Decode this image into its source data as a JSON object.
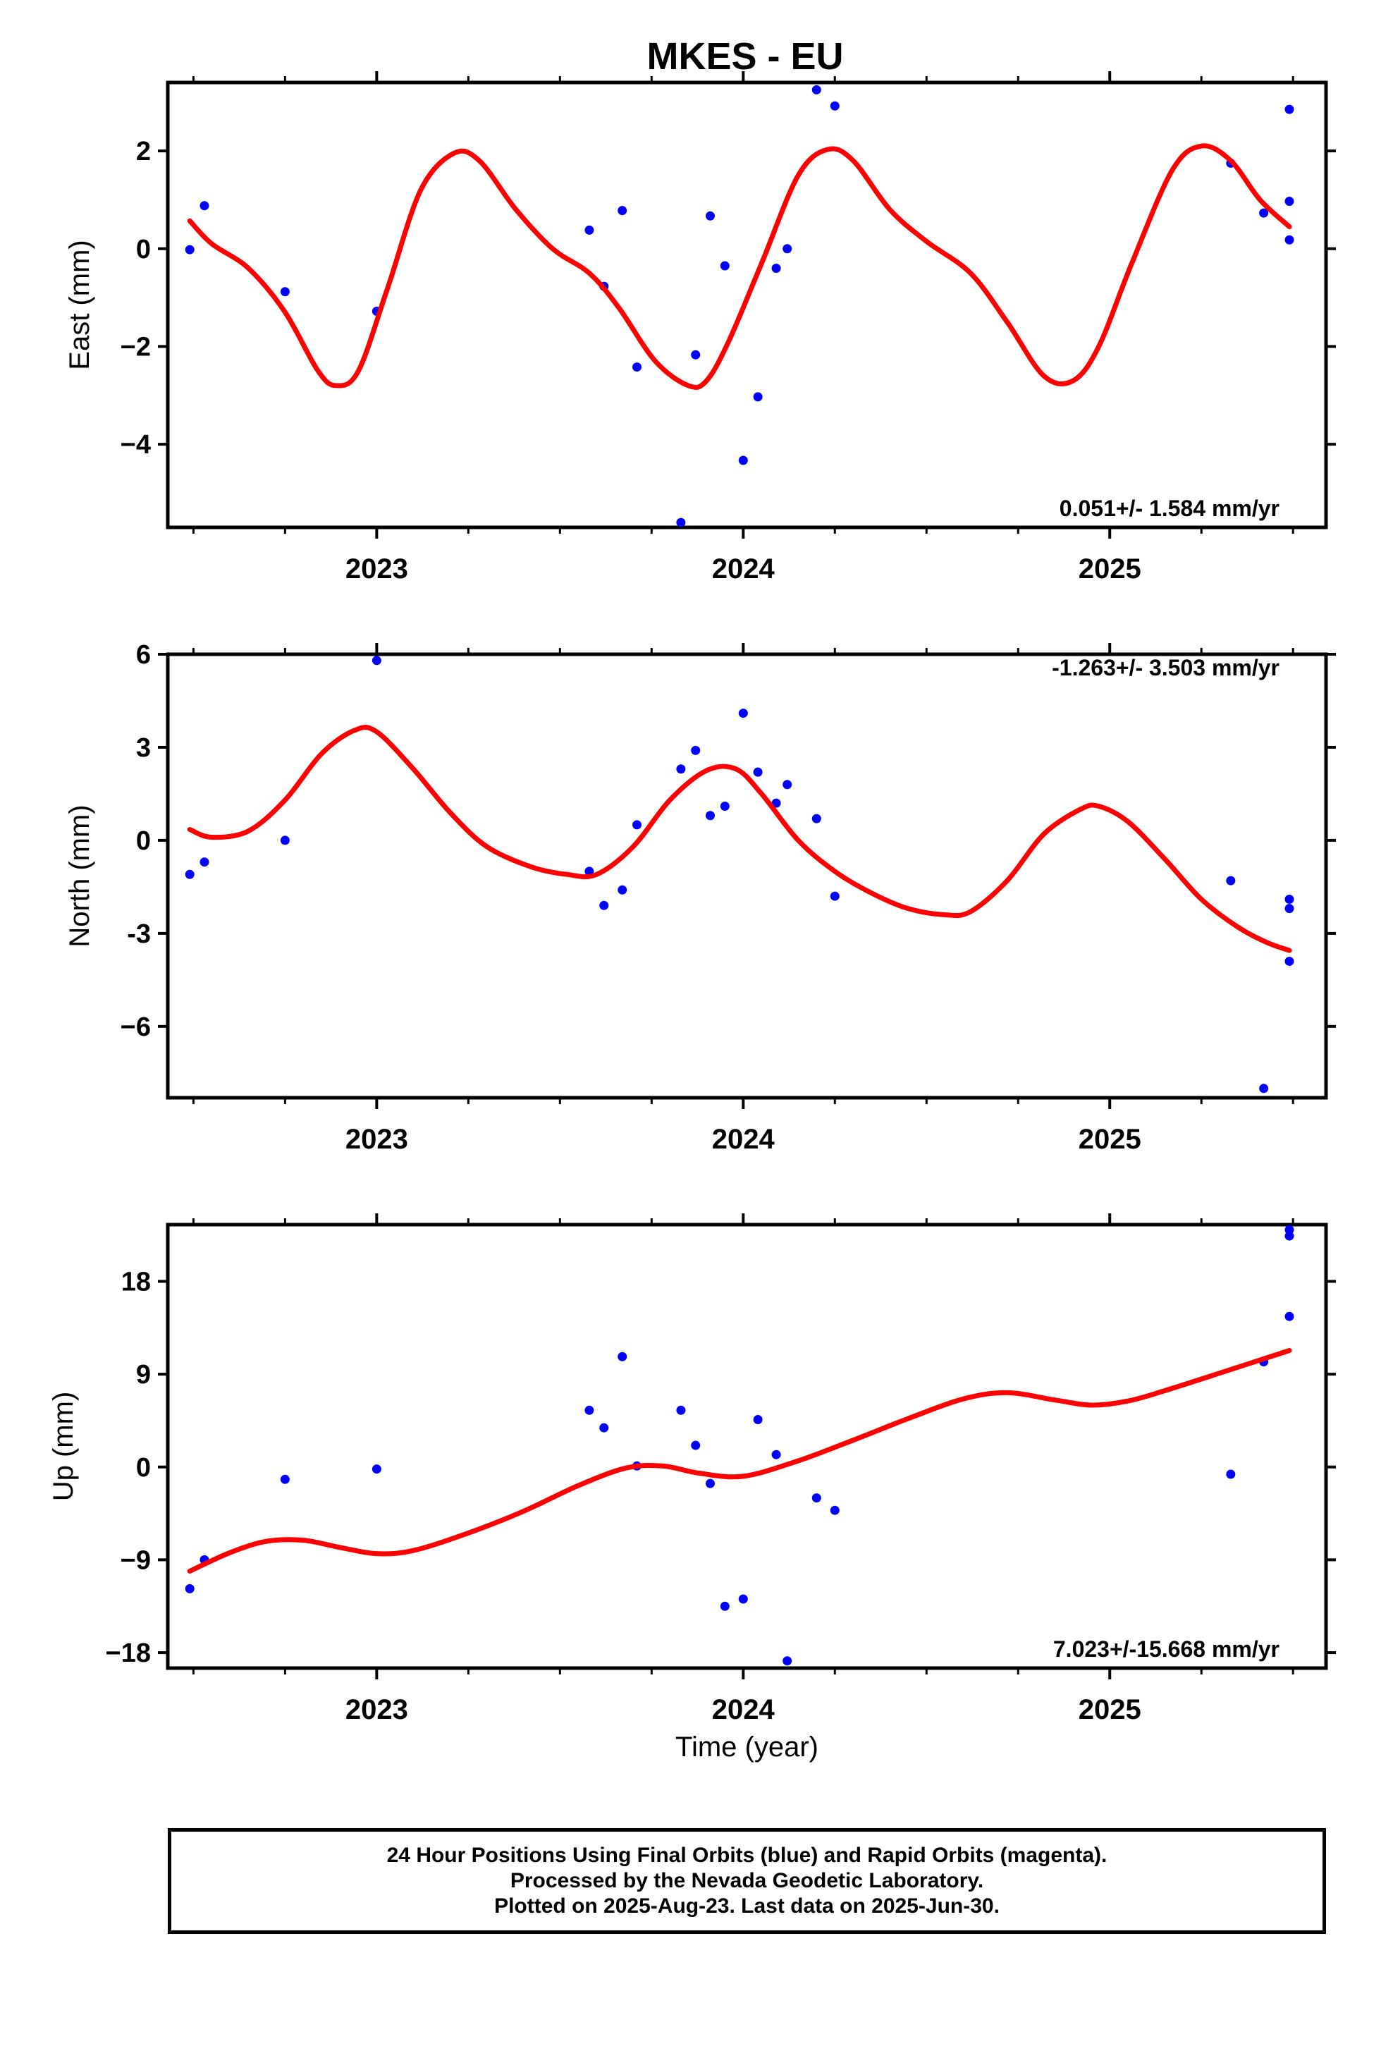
{
  "title": "MKES - EU",
  "colors": {
    "data_points": "#0000ff",
    "fit_curve": "#ff0000",
    "frame": "#000000"
  },
  "chart_data": [
    {
      "type": "scatter",
      "panel": "east",
      "ylabel": "East (mm)",
      "xlim": [
        2022.43,
        2025.59
      ],
      "ylim": [
        -5.7,
        3.4
      ],
      "yticks": [
        2,
        0,
        -2,
        -4
      ],
      "ytick_labels": [
        "2",
        "0",
        "−2",
        "−4"
      ],
      "xticks": [
        2023,
        2024,
        2025
      ],
      "xtick_labels": [
        "2023",
        "2024",
        "2025"
      ],
      "rate_label": "0.051+/- 1.584 mm/yr",
      "points": [
        [
          2022.49,
          -0.02
        ],
        [
          2022.53,
          0.88
        ],
        [
          2022.75,
          -0.88
        ],
        [
          2023.0,
          -1.28
        ],
        [
          2023.58,
          0.38
        ],
        [
          2023.62,
          -0.77
        ],
        [
          2023.67,
          0.78
        ],
        [
          2023.71,
          -2.42
        ],
        [
          2023.83,
          -5.6
        ],
        [
          2023.87,
          -2.17
        ],
        [
          2023.91,
          0.67
        ],
        [
          2023.95,
          -0.35
        ],
        [
          2024.0,
          -4.33
        ],
        [
          2024.04,
          -3.03
        ],
        [
          2024.09,
          -0.4
        ],
        [
          2024.12,
          0.0
        ],
        [
          2024.2,
          3.25
        ],
        [
          2024.25,
          2.92
        ],
        [
          2025.33,
          1.75
        ],
        [
          2025.42,
          0.73
        ],
        [
          2025.49,
          2.85
        ],
        [
          2025.49,
          0.97
        ],
        [
          2025.49,
          0.18
        ]
      ],
      "fit": [
        [
          2022.49,
          0.57
        ],
        [
          2022.55,
          0.1
        ],
        [
          2022.65,
          -0.4
        ],
        [
          2022.75,
          -1.3
        ],
        [
          2022.84,
          -2.5
        ],
        [
          2022.89,
          -2.8
        ],
        [
          2022.95,
          -2.5
        ],
        [
          2023.03,
          -0.8
        ],
        [
          2023.12,
          1.2
        ],
        [
          2023.21,
          1.95
        ],
        [
          2023.28,
          1.8
        ],
        [
          2023.38,
          0.8
        ],
        [
          2023.48,
          0.0
        ],
        [
          2023.58,
          -0.5
        ],
        [
          2023.66,
          -1.2
        ],
        [
          2023.76,
          -2.3
        ],
        [
          2023.85,
          -2.8
        ],
        [
          2023.9,
          -2.7
        ],
        [
          2023.96,
          -1.9
        ],
        [
          2024.05,
          -0.3
        ],
        [
          2024.15,
          1.5
        ],
        [
          2024.23,
          2.03
        ],
        [
          2024.3,
          1.8
        ],
        [
          2024.4,
          0.8
        ],
        [
          2024.5,
          0.15
        ],
        [
          2024.62,
          -0.5
        ],
        [
          2024.72,
          -1.5
        ],
        [
          2024.82,
          -2.6
        ],
        [
          2024.9,
          -2.7
        ],
        [
          2024.97,
          -2.0
        ],
        [
          2025.06,
          -0.3
        ],
        [
          2025.17,
          1.6
        ],
        [
          2025.25,
          2.1
        ],
        [
          2025.33,
          1.8
        ],
        [
          2025.41,
          1.0
        ],
        [
          2025.49,
          0.45
        ]
      ]
    },
    {
      "type": "scatter",
      "panel": "north",
      "ylabel": "North (mm)",
      "xlim": [
        2022.43,
        2025.59
      ],
      "ylim": [
        -8.3,
        6.0
      ],
      "yticks": [
        6,
        3,
        0,
        -3,
        -6
      ],
      "ytick_labels": [
        "6",
        "3",
        "0",
        "-3",
        "−6"
      ],
      "xticks": [
        2023,
        2024,
        2025
      ],
      "xtick_labels": [
        "2023",
        "2024",
        "2025"
      ],
      "rate_label": "-1.263+/- 3.503 mm/yr",
      "points": [
        [
          2022.49,
          -1.1
        ],
        [
          2022.53,
          -0.7
        ],
        [
          2022.75,
          0.0
        ],
        [
          2023.0,
          5.8
        ],
        [
          2023.58,
          -1.0
        ],
        [
          2023.62,
          -2.1
        ],
        [
          2023.67,
          -1.6
        ],
        [
          2023.71,
          0.5
        ],
        [
          2023.83,
          2.3
        ],
        [
          2023.87,
          2.9
        ],
        [
          2023.91,
          0.8
        ],
        [
          2023.95,
          1.1
        ],
        [
          2024.0,
          4.1
        ],
        [
          2024.04,
          2.2
        ],
        [
          2024.09,
          1.2
        ],
        [
          2024.12,
          1.8
        ],
        [
          2024.2,
          0.7
        ],
        [
          2024.25,
          -1.8
        ],
        [
          2025.33,
          -1.3
        ],
        [
          2025.42,
          -8.0
        ],
        [
          2025.49,
          -1.9
        ],
        [
          2025.49,
          -2.2
        ],
        [
          2025.49,
          -3.9
        ]
      ],
      "fit": [
        [
          2022.49,
          0.35
        ],
        [
          2022.55,
          0.1
        ],
        [
          2022.65,
          0.3
        ],
        [
          2022.75,
          1.3
        ],
        [
          2022.85,
          2.8
        ],
        [
          2022.94,
          3.55
        ],
        [
          2023.0,
          3.5
        ],
        [
          2023.1,
          2.3
        ],
        [
          2023.2,
          0.9
        ],
        [
          2023.3,
          -0.2
        ],
        [
          2023.42,
          -0.85
        ],
        [
          2023.52,
          -1.1
        ],
        [
          2023.6,
          -1.1
        ],
        [
          2023.7,
          -0.2
        ],
        [
          2023.8,
          1.3
        ],
        [
          2023.9,
          2.25
        ],
        [
          2023.98,
          2.3
        ],
        [
          2024.05,
          1.5
        ],
        [
          2024.15,
          0.0
        ],
        [
          2024.25,
          -1.0
        ],
        [
          2024.35,
          -1.7
        ],
        [
          2024.45,
          -2.2
        ],
        [
          2024.55,
          -2.4
        ],
        [
          2024.62,
          -2.3
        ],
        [
          2024.72,
          -1.3
        ],
        [
          2024.82,
          0.2
        ],
        [
          2024.92,
          1.0
        ],
        [
          2024.97,
          1.1
        ],
        [
          2025.05,
          0.6
        ],
        [
          2025.15,
          -0.6
        ],
        [
          2025.25,
          -1.9
        ],
        [
          2025.35,
          -2.8
        ],
        [
          2025.43,
          -3.3
        ],
        [
          2025.49,
          -3.55
        ]
      ]
    },
    {
      "type": "scatter",
      "panel": "up",
      "ylabel": "Up (mm)",
      "xlabel": "Time (year)",
      "xlim": [
        2022.43,
        2025.59
      ],
      "ylim": [
        -19.5,
        23.5
      ],
      "yticks": [
        18,
        9,
        0,
        -9,
        -18
      ],
      "ytick_labels": [
        "18",
        "9",
        "0",
        "−9",
        "−18"
      ],
      "xticks": [
        2023,
        2024,
        2025
      ],
      "xtick_labels": [
        "2023",
        "2024",
        "2025"
      ],
      "rate_label": "7.023+/-15.668 mm/yr",
      "points": [
        [
          2022.49,
          -11.8
        ],
        [
          2022.53,
          -9.0
        ],
        [
          2022.75,
          -1.2
        ],
        [
          2023.0,
          -0.2
        ],
        [
          2023.58,
          5.5
        ],
        [
          2023.62,
          3.8
        ],
        [
          2023.67,
          10.7
        ],
        [
          2023.71,
          0.1
        ],
        [
          2023.83,
          5.5
        ],
        [
          2023.87,
          2.1
        ],
        [
          2023.91,
          -1.6
        ],
        [
          2023.95,
          -13.5
        ],
        [
          2024.0,
          -12.8
        ],
        [
          2024.04,
          4.6
        ],
        [
          2024.09,
          1.2
        ],
        [
          2024.12,
          -18.8
        ],
        [
          2024.2,
          -3.0
        ],
        [
          2024.25,
          -4.2
        ],
        [
          2025.33,
          -0.7
        ],
        [
          2025.42,
          10.2
        ],
        [
          2025.49,
          23.0
        ],
        [
          2025.49,
          22.4
        ],
        [
          2025.49,
          14.6
        ]
      ],
      "fit": [
        [
          2022.49,
          -10.1
        ],
        [
          2022.6,
          -8.3
        ],
        [
          2022.7,
          -7.2
        ],
        [
          2022.8,
          -7.1
        ],
        [
          2022.9,
          -7.8
        ],
        [
          2023.0,
          -8.4
        ],
        [
          2023.1,
          -8.1
        ],
        [
          2023.25,
          -6.4
        ],
        [
          2023.4,
          -4.3
        ],
        [
          2023.55,
          -1.8
        ],
        [
          2023.68,
          -0.1
        ],
        [
          2023.78,
          0.1
        ],
        [
          2023.88,
          -0.6
        ],
        [
          2024.0,
          -0.9
        ],
        [
          2024.15,
          0.6
        ],
        [
          2024.3,
          2.6
        ],
        [
          2024.45,
          4.7
        ],
        [
          2024.6,
          6.6
        ],
        [
          2024.72,
          7.2
        ],
        [
          2024.85,
          6.5
        ],
        [
          2024.95,
          6.0
        ],
        [
          2025.05,
          6.4
        ],
        [
          2025.15,
          7.4
        ],
        [
          2025.3,
          9.1
        ],
        [
          2025.49,
          11.3
        ]
      ]
    }
  ],
  "footer": {
    "line1": "24 Hour Positions Using Final Orbits (blue) and Rapid Orbits (magenta).",
    "line2": "Processed by the Nevada Geodetic Laboratory.",
    "line3": "Plotted on 2025-Aug-23. Last data on 2025-Jun-30."
  }
}
